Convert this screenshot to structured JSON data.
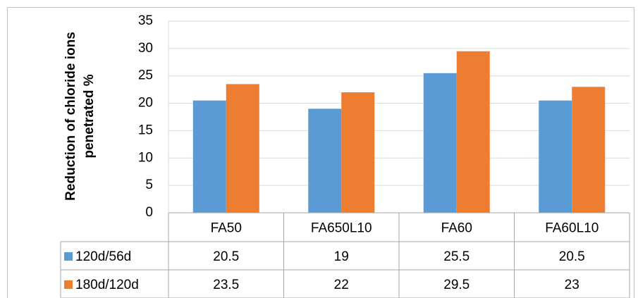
{
  "chart_data": {
    "type": "bar",
    "ylabel": [
      "Reduction of chloride ions",
      "penetrated %"
    ],
    "categories": [
      "FA50",
      "FA650L10",
      "FA60",
      "FA60L10"
    ],
    "series": [
      {
        "name": "120d/56d",
        "color": "#5b9bd5",
        "values": [
          20.5,
          19,
          25.5,
          20.5
        ]
      },
      {
        "name": "180d/120d",
        "color": "#ed7d31",
        "values": [
          23.5,
          22,
          29.5,
          23
        ]
      }
    ],
    "ylim": [
      0,
      35
    ],
    "yticks": [
      0,
      5,
      10,
      15,
      20,
      25,
      30,
      35
    ],
    "grid": true
  }
}
